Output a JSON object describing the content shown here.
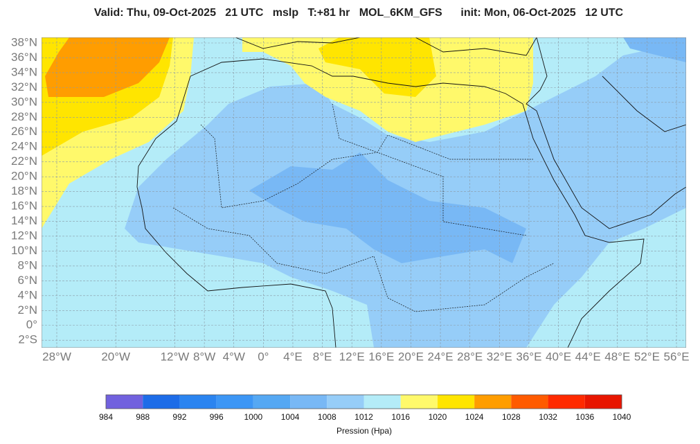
{
  "header": {
    "title": "Valid: Thu, 09-Oct-2025   21 UTC   mslp   T:+81 hr   MOL_6KM_GFS      init: Mon, 06-Oct-2025   12 UTC"
  },
  "map": {
    "lat_ticks": [
      {
        "value": 38,
        "label": "38°N"
      },
      {
        "value": 36,
        "label": "36°N"
      },
      {
        "value": 34,
        "label": "34°N"
      },
      {
        "value": 32,
        "label": "32°N"
      },
      {
        "value": 30,
        "label": "30°N"
      },
      {
        "value": 28,
        "label": "28°N"
      },
      {
        "value": 26,
        "label": "26°N"
      },
      {
        "value": 24,
        "label": "24°N"
      },
      {
        "value": 22,
        "label": "22°N"
      },
      {
        "value": 20,
        "label": "20°N"
      },
      {
        "value": 18,
        "label": "18°N"
      },
      {
        "value": 16,
        "label": "16°N"
      },
      {
        "value": 14,
        "label": "14°N"
      },
      {
        "value": 12,
        "label": "12°N"
      },
      {
        "value": 10,
        "label": "10°N"
      },
      {
        "value": 8,
        "label": "8°N"
      },
      {
        "value": 6,
        "label": "6°N"
      },
      {
        "value": 4,
        "label": "4°N"
      },
      {
        "value": 2,
        "label": "2°N"
      },
      {
        "value": 0,
        "label": "0°"
      },
      {
        "value": -2,
        "label": "2°S"
      }
    ],
    "lon_ticks": [
      {
        "value": -28,
        "label": "28°W"
      },
      {
        "value": -20,
        "label": "20°W"
      },
      {
        "value": -12,
        "label": "12°W"
      },
      {
        "value": -8,
        "label": "8°W"
      },
      {
        "value": -4,
        "label": "4°W"
      },
      {
        "value": 0,
        "label": "0°"
      },
      {
        "value": 4,
        "label": "4°E"
      },
      {
        "value": 8,
        "label": "8°E"
      },
      {
        "value": 12,
        "label": "12°E"
      },
      {
        "value": 16,
        "label": "16°E"
      },
      {
        "value": 20,
        "label": "20°E"
      },
      {
        "value": 24,
        "label": "24°E"
      },
      {
        "value": 28,
        "label": "28°E"
      },
      {
        "value": 32,
        "label": "32°E"
      },
      {
        "value": 36,
        "label": "36°E"
      },
      {
        "value": 40,
        "label": "40°E"
      },
      {
        "value": 44,
        "label": "44°E"
      },
      {
        "value": 48,
        "label": "48°E"
      },
      {
        "value": 52,
        "label": "52°E"
      },
      {
        "value": 56,
        "label": "56°E"
      }
    ]
  },
  "colorbar": {
    "levels": [
      984,
      988,
      992,
      996,
      1000,
      1004,
      1008,
      1012,
      1016,
      1020,
      1024,
      1028,
      1032,
      1036,
      1040
    ],
    "colors": [
      "#7161de",
      "#1d6ce8",
      "#2a84f0",
      "#3c96f5",
      "#55a8f3",
      "#78b8f5",
      "#96cdf8",
      "#b4ecf8",
      "#fff96b",
      "#ffe500",
      "#ff9d00",
      "#ff5b00",
      "#ff2a00",
      "#e81600"
    ],
    "label": "Pression (Hpa)"
  }
}
